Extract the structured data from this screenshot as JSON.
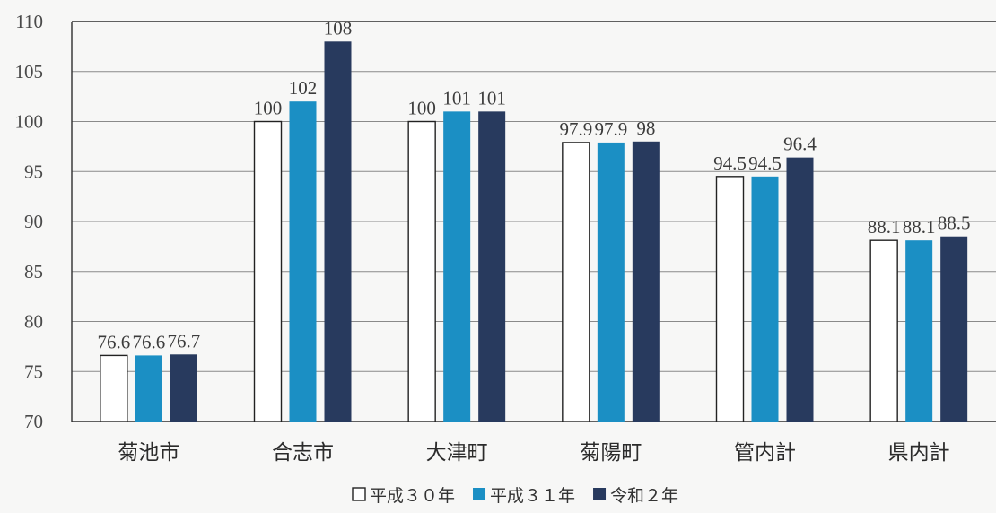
{
  "chart_data": {
    "type": "bar",
    "title": "",
    "xlabel": "",
    "ylabel": "",
    "ylim": [
      70,
      110
    ],
    "yticks": [
      70,
      75,
      80,
      85,
      90,
      95,
      100,
      105,
      110
    ],
    "grid": true,
    "legend_position": "bottom-center",
    "categories": [
      "菊池市",
      "合志市",
      "大津町",
      "菊陽町",
      "管内計",
      "県内計"
    ],
    "series": [
      {
        "name": "平成３０年",
        "color": "#ffffff",
        "values": [
          76.6,
          100,
          100,
          97.9,
          94.5,
          88.1
        ]
      },
      {
        "name": "平成３１年",
        "color": "#1b8fc4",
        "values": [
          76.6,
          102,
          101,
          97.9,
          94.5,
          88.1
        ]
      },
      {
        "name": "令和２年",
        "color": "#283a5e",
        "values": [
          76.7,
          108,
          101,
          98,
          96.4,
          88.5
        ]
      }
    ]
  }
}
